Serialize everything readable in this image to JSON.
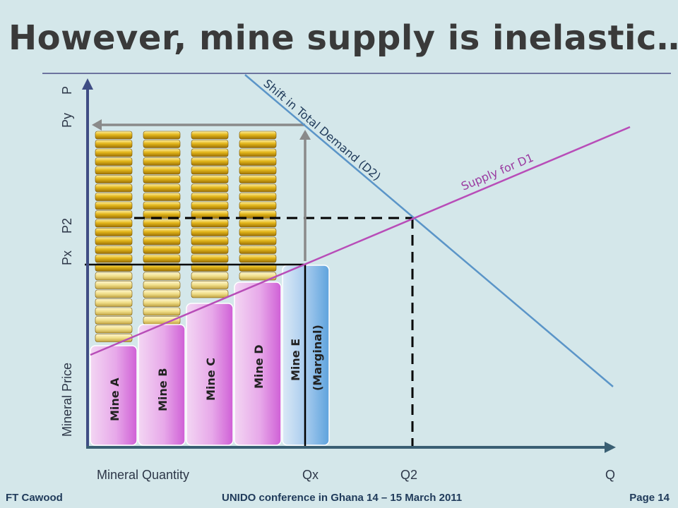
{
  "title": "However, mine supply is inelastic…",
  "axes": {
    "y_price_labels": {
      "p": "P",
      "py": "Py",
      "p2": "P2",
      "px": "Px"
    },
    "y_title": "Mineral Price",
    "x_title": "Mineral Quantity",
    "x_labels": {
      "qx": "Qx",
      "q2": "Q2",
      "q": "Q"
    }
  },
  "mines": [
    {
      "label": "Mine  A",
      "color": "#cf5fd6"
    },
    {
      "label": "Mine  B",
      "color": "#cf5fd6"
    },
    {
      "label": "Mine  C",
      "color": "#cf5fd6"
    },
    {
      "label": "Mine  D",
      "color": "#cf5fd6"
    },
    {
      "label_line1": "Mine E",
      "label_line2": "(Marginal)",
      "color": "#5ea3dd"
    }
  ],
  "curves": {
    "supply_label": "Supply for D1",
    "supply_color": "#b84db8",
    "demand_label": "Shift in Total Demand (D2)",
    "demand_color": "#5b95c8"
  },
  "footer": {
    "author": "FT Cawood",
    "event": "UNIDO conference in Ghana 14 – 15 March 2011",
    "page": "Page 14"
  }
}
